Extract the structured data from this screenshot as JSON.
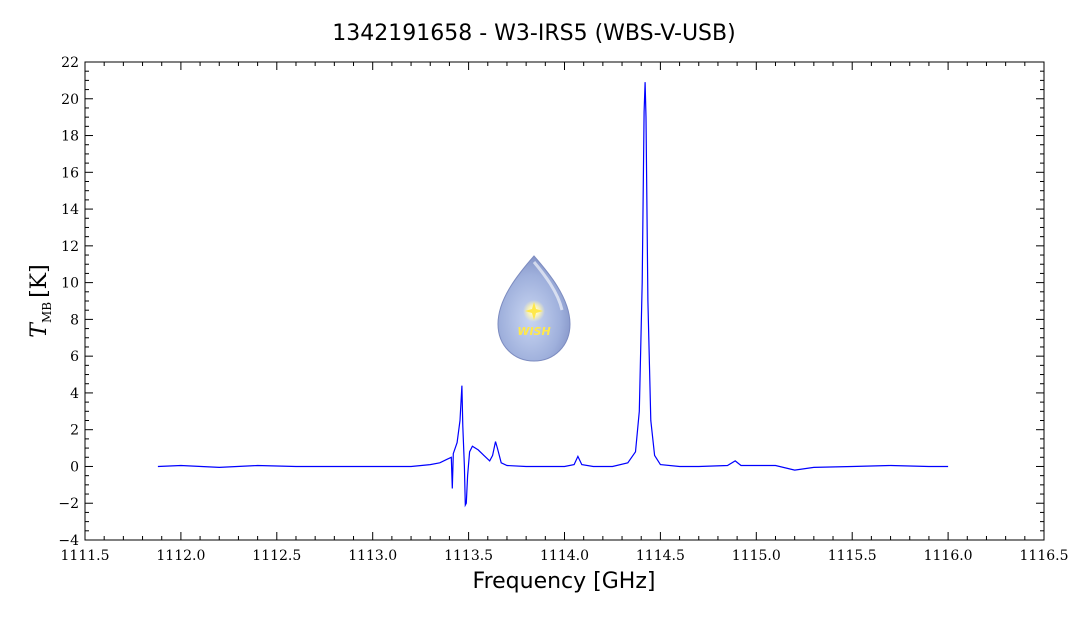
{
  "chart_data": {
    "type": "line",
    "title": "1342191658 - W3-IRS5 (WBS-V-USB)",
    "xlabel": "Frequency [GHz]",
    "ylabel": {
      "symbol": "T",
      "subscript": "MB",
      "unit": "[K]"
    },
    "xlim": [
      1111.5,
      1116.5
    ],
    "ylim": [
      -4,
      22
    ],
    "xticks": [
      1111.5,
      1112.0,
      1112.5,
      1113.0,
      1113.5,
      1114.0,
      1114.5,
      1115.0,
      1115.5,
      1116.0,
      1116.5
    ],
    "xtick_labels": [
      "1111.5",
      "1112.0",
      "1112.5",
      "1113.0",
      "1113.5",
      "1114.0",
      "1114.5",
      "1115.0",
      "1115.5",
      "1116.0",
      "1116.5"
    ],
    "yticks": [
      -4,
      -2,
      0,
      2,
      4,
      6,
      8,
      10,
      12,
      14,
      16,
      18,
      20,
      22
    ],
    "ytick_labels": [
      "−4",
      "−2",
      "0",
      "2",
      "4",
      "6",
      "8",
      "10",
      "12",
      "14",
      "16",
      "18",
      "20",
      "22"
    ],
    "grid": false,
    "legend": null,
    "series": [
      {
        "color": "#0000ff",
        "points": [
          [
            1111.88,
            0.0
          ],
          [
            1112.0,
            0.05
          ],
          [
            1112.2,
            -0.05
          ],
          [
            1112.4,
            0.05
          ],
          [
            1112.6,
            0.0
          ],
          [
            1112.8,
            0.0
          ],
          [
            1113.0,
            0.0
          ],
          [
            1113.2,
            0.0
          ],
          [
            1113.3,
            0.1
          ],
          [
            1113.35,
            0.2
          ],
          [
            1113.39,
            0.4
          ],
          [
            1113.41,
            0.5
          ],
          [
            1113.415,
            -1.2
          ],
          [
            1113.42,
            0.7
          ],
          [
            1113.44,
            1.3
          ],
          [
            1113.455,
            2.5
          ],
          [
            1113.465,
            4.4
          ],
          [
            1113.47,
            2.2
          ],
          [
            1113.478,
            0.0
          ],
          [
            1113.483,
            -2.1
          ],
          [
            1113.488,
            -2.0
          ],
          [
            1113.495,
            -0.5
          ],
          [
            1113.505,
            0.8
          ],
          [
            1113.52,
            1.1
          ],
          [
            1113.55,
            0.9
          ],
          [
            1113.58,
            0.6
          ],
          [
            1113.61,
            0.3
          ],
          [
            1113.625,
            0.6
          ],
          [
            1113.64,
            1.35
          ],
          [
            1113.65,
            1.0
          ],
          [
            1113.67,
            0.2
          ],
          [
            1113.7,
            0.05
          ],
          [
            1113.8,
            0.0
          ],
          [
            1113.9,
            0.0
          ],
          [
            1114.0,
            0.0
          ],
          [
            1114.05,
            0.1
          ],
          [
            1114.07,
            0.55
          ],
          [
            1114.09,
            0.1
          ],
          [
            1114.15,
            0.0
          ],
          [
            1114.25,
            0.0
          ],
          [
            1114.33,
            0.2
          ],
          [
            1114.37,
            0.8
          ],
          [
            1114.39,
            3.0
          ],
          [
            1114.405,
            10.0
          ],
          [
            1114.415,
            19.3
          ],
          [
            1114.42,
            20.9
          ],
          [
            1114.425,
            19.0
          ],
          [
            1114.435,
            9.0
          ],
          [
            1114.45,
            2.5
          ],
          [
            1114.47,
            0.6
          ],
          [
            1114.5,
            0.1
          ],
          [
            1114.6,
            0.0
          ],
          [
            1114.7,
            0.0
          ],
          [
            1114.85,
            0.05
          ],
          [
            1114.89,
            0.3
          ],
          [
            1114.92,
            0.05
          ],
          [
            1115.0,
            0.05
          ],
          [
            1115.1,
            0.05
          ],
          [
            1115.2,
            -0.2
          ],
          [
            1115.3,
            -0.05
          ],
          [
            1115.5,
            0.0
          ],
          [
            1115.7,
            0.05
          ],
          [
            1115.9,
            0.0
          ],
          [
            1116.0,
            0.0
          ]
        ]
      }
    ]
  },
  "logo": {
    "text": "WISH"
  }
}
